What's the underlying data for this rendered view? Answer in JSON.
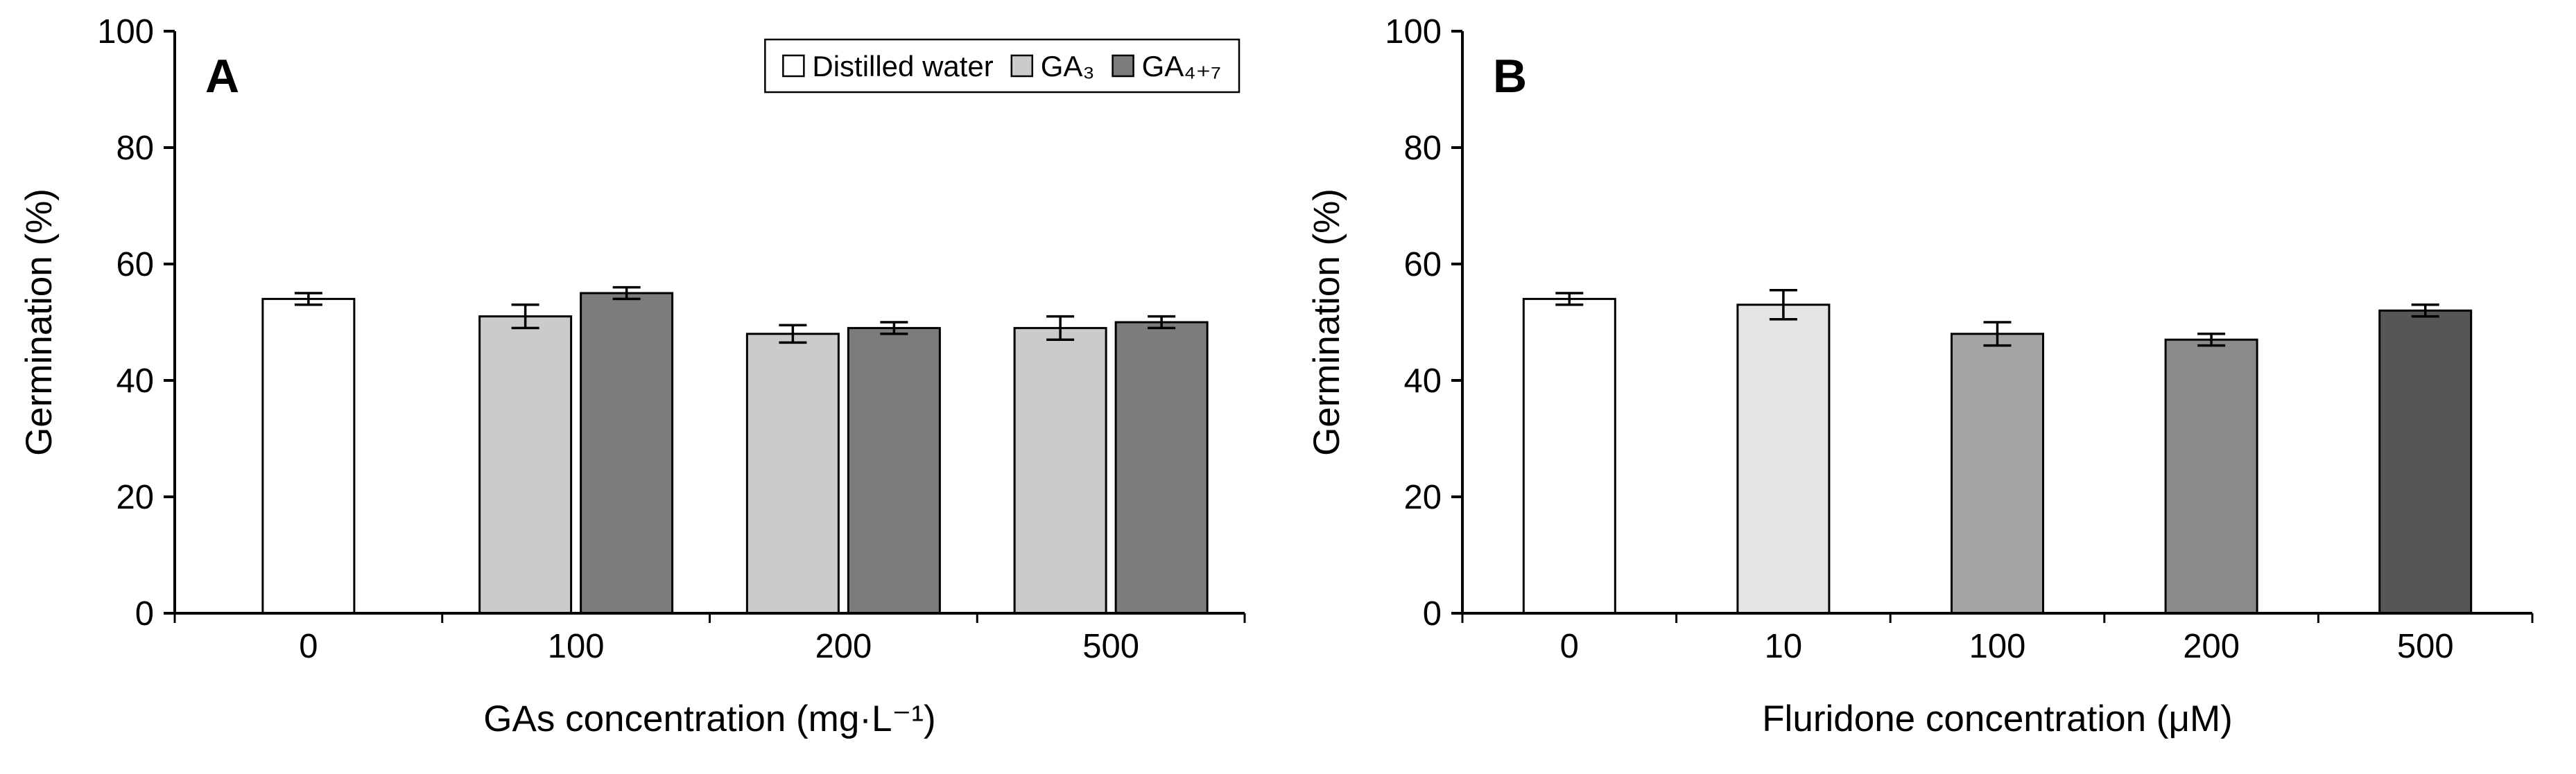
{
  "figure": {
    "background": "#ffffff",
    "axis_color": "#000000",
    "bar_outline_color": "#000000"
  },
  "chart_data": [
    {
      "panel_label": "A",
      "type": "bar",
      "title": "",
      "xlabel": "GAs concentration (mg·L⁻¹)",
      "ylabel": "Germination (%)",
      "ylim": [
        0,
        100
      ],
      "yticks": [
        0,
        20,
        40,
        60,
        80,
        100
      ],
      "grid": false,
      "categories": [
        "0",
        "100",
        "200",
        "500"
      ],
      "legend": {
        "visible": true,
        "position": "top-right"
      },
      "series": [
        {
          "name": "Distilled water",
          "color": "#ffffff",
          "values": [
            54,
            null,
            null,
            null
          ],
          "errors": [
            1,
            null,
            null,
            null
          ]
        },
        {
          "name": "GA₃",
          "color": "#cbcbcb",
          "values": [
            null,
            51,
            48,
            49
          ],
          "errors": [
            null,
            2,
            1.5,
            2
          ]
        },
        {
          "name": "GA₄₊₇",
          "color": "#7c7c7c",
          "values": [
            null,
            55,
            49,
            50
          ],
          "errors": [
            null,
            1,
            1,
            1
          ]
        }
      ]
    },
    {
      "panel_label": "B",
      "type": "bar",
      "title": "",
      "xlabel": "Fluridone concentration (μM)",
      "ylabel": "Germination (%)",
      "ylim": [
        0,
        100
      ],
      "yticks": [
        0,
        20,
        40,
        60,
        80,
        100
      ],
      "grid": false,
      "categories": [
        "0",
        "10",
        "100",
        "200",
        "500"
      ],
      "legend": {
        "visible": false,
        "position": "none"
      },
      "series": [
        {
          "name": "Fluridone",
          "colors": [
            "#ffffff",
            "#e4e4e4",
            "#a5a5a5",
            "#8b8b8b",
            "#565656"
          ],
          "values": [
            54,
            53,
            48,
            47,
            52
          ],
          "errors": [
            1,
            2.5,
            2,
            1,
            1
          ]
        }
      ]
    }
  ]
}
